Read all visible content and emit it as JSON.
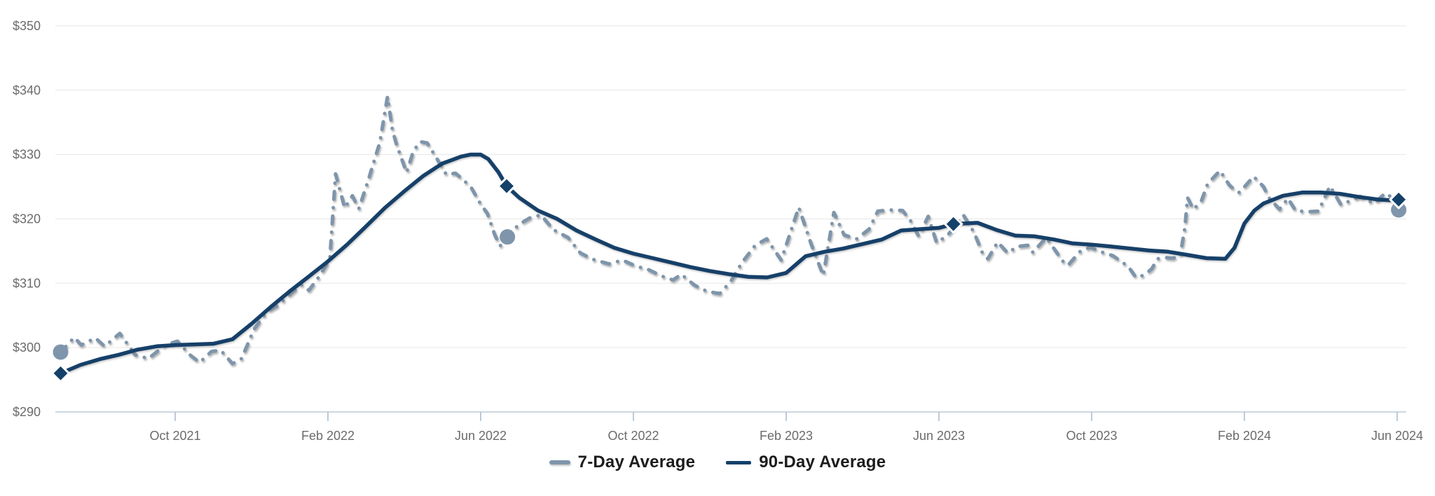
{
  "chart_data": {
    "type": "line",
    "title": "",
    "xlabel": "",
    "ylabel": "",
    "x_axis": {
      "unit": "months since 2021-07-01",
      "tick_t": [
        3,
        7,
        11,
        15,
        19,
        23,
        27,
        31,
        35
      ],
      "tick_labels": [
        "Oct 2021",
        "Feb 2022",
        "Jun 2022",
        "Oct 2022",
        "Feb 2023",
        "Jun 2023",
        "Oct 2023",
        "Feb 2024",
        "Jun 2024"
      ]
    },
    "y_axis": {
      "range": [
        290,
        350
      ],
      "tick_values": [
        290,
        300,
        310,
        320,
        330,
        340,
        350
      ],
      "tick_labels": [
        "$290",
        "$300",
        "$310",
        "$320",
        "$330",
        "$340",
        "$350"
      ]
    },
    "grid": "horizontal",
    "legend_position": "bottom-center",
    "series": [
      {
        "name": "7-Day Average",
        "style": "dashed",
        "color": "#7E95AB",
        "points": [
          [
            0,
            299.3
          ],
          [
            0.36,
            301.6
          ],
          [
            0.54,
            300.4
          ],
          [
            0.91,
            301.5
          ],
          [
            1.15,
            300.2
          ],
          [
            1.55,
            302.2
          ],
          [
            1.95,
            298.9
          ],
          [
            2.3,
            298.3
          ],
          [
            2.74,
            300.4
          ],
          [
            3.06,
            301
          ],
          [
            3.4,
            298.8
          ],
          [
            3.64,
            297.7
          ],
          [
            3.95,
            299.4
          ],
          [
            4.19,
            299.6
          ],
          [
            4.5,
            297.5
          ],
          [
            4.74,
            298.3
          ],
          [
            5.06,
            302.8
          ],
          [
            5.4,
            305.6
          ],
          [
            5.7,
            306.6
          ],
          [
            6.01,
            308.3
          ],
          [
            6.3,
            309.8
          ],
          [
            6.5,
            308.9
          ],
          [
            6.8,
            311.3
          ],
          [
            7.05,
            313.8
          ],
          [
            7.2,
            327
          ],
          [
            7.44,
            321.7
          ],
          [
            7.64,
            323.6
          ],
          [
            7.81,
            321.6
          ],
          [
            8.05,
            325.9
          ],
          [
            8.36,
            331.9
          ],
          [
            8.56,
            339
          ],
          [
            8.69,
            333.8
          ],
          [
            8.8,
            331.5
          ],
          [
            9.06,
            327.2
          ],
          [
            9.24,
            330.6
          ],
          [
            9.42,
            332
          ],
          [
            9.6,
            331.8
          ],
          [
            9.84,
            329.5
          ],
          [
            10.1,
            326.9
          ],
          [
            10.34,
            327.1
          ],
          [
            10.56,
            326
          ],
          [
            10.76,
            324.8
          ],
          [
            10.98,
            322.5
          ],
          [
            11.18,
            320.8
          ],
          [
            11.37,
            317.5
          ],
          [
            11.51,
            315.8
          ],
          [
            11.7,
            317.2
          ],
          [
            11.99,
            319.1
          ],
          [
            12.3,
            320.2
          ],
          [
            12.58,
            320.6
          ],
          [
            12.91,
            318.3
          ],
          [
            13.29,
            317.1
          ],
          [
            13.61,
            314.7
          ],
          [
            13.95,
            313.7
          ],
          [
            14.36,
            313
          ],
          [
            14.71,
            313.6
          ],
          [
            15.05,
            312.7
          ],
          [
            15.4,
            312.1
          ],
          [
            15.75,
            311.1
          ],
          [
            16.04,
            310.5
          ],
          [
            16.25,
            311.4
          ],
          [
            16.6,
            309.7
          ],
          [
            16.94,
            308.7
          ],
          [
            17.26,
            308.4
          ],
          [
            17.55,
            310.3
          ],
          [
            17.84,
            313.2
          ],
          [
            18.19,
            315.9
          ],
          [
            18.49,
            316.9
          ],
          [
            18.87,
            313.6
          ],
          [
            19.33,
            321.8
          ],
          [
            19.66,
            316
          ],
          [
            19.97,
            311.2
          ],
          [
            20.25,
            321
          ],
          [
            20.52,
            317.5
          ],
          [
            20.85,
            316.9
          ],
          [
            21.17,
            318.4
          ],
          [
            21.4,
            321.2
          ],
          [
            21.72,
            321.4
          ],
          [
            22.05,
            321.3
          ],
          [
            22.27,
            319.6
          ],
          [
            22.47,
            317.3
          ],
          [
            22.72,
            320.4
          ],
          [
            22.94,
            316.3
          ],
          [
            23.22,
            317.4
          ],
          [
            23.44,
            319
          ],
          [
            23.64,
            320.6
          ],
          [
            23.92,
            317.9
          ],
          [
            24.14,
            314.7
          ],
          [
            24.28,
            313.8
          ],
          [
            24.54,
            316.4
          ],
          [
            24.8,
            314.7
          ],
          [
            25.05,
            315.7
          ],
          [
            25.33,
            315.9
          ],
          [
            25.46,
            314.8
          ],
          [
            25.81,
            317.1
          ],
          [
            26.25,
            313.4
          ],
          [
            26.38,
            312.8
          ],
          [
            26.69,
            314.9
          ],
          [
            26.96,
            315.6
          ],
          [
            27.37,
            314.6
          ],
          [
            27.55,
            314.3
          ],
          [
            27.84,
            313.1
          ],
          [
            27.97,
            312.5
          ],
          [
            28.16,
            310.9
          ],
          [
            28.39,
            311.3
          ],
          [
            28.58,
            312.3
          ],
          [
            28.72,
            313.8
          ],
          [
            28.93,
            314
          ],
          [
            29.11,
            313.9
          ],
          [
            29.31,
            314.1
          ],
          [
            29.44,
            318.6
          ],
          [
            29.51,
            323.3
          ],
          [
            29.66,
            321.5
          ],
          [
            29.86,
            322.6
          ],
          [
            30.04,
            325.5
          ],
          [
            30.36,
            327.5
          ],
          [
            30.6,
            325.3
          ],
          [
            30.78,
            324.3
          ],
          [
            30.87,
            324.1
          ],
          [
            31.24,
            326.6
          ],
          [
            31.5,
            325
          ],
          [
            31.64,
            323.3
          ],
          [
            31.92,
            321.5
          ],
          [
            32.14,
            323.2
          ],
          [
            32.34,
            321.3
          ],
          [
            32.63,
            321.1
          ],
          [
            32.94,
            321.2
          ],
          [
            33.24,
            325.1
          ],
          [
            33.53,
            322.2
          ],
          [
            33.72,
            322.7
          ],
          [
            34.03,
            323.5
          ],
          [
            34.39,
            322.4
          ],
          [
            34.69,
            324
          ],
          [
            34.82,
            323.5
          ],
          [
            35.04,
            321.4
          ]
        ],
        "markers": [
          {
            "t": 0,
            "v": 299.3,
            "shape": "circle"
          },
          {
            "t": 11.7,
            "v": 317.2,
            "shape": "circle"
          },
          {
            "t": 35.04,
            "v": 321.4,
            "shape": "circle"
          }
        ]
      },
      {
        "name": "90-Day Average",
        "style": "solid",
        "color": "#144169",
        "points": [
          [
            0,
            296
          ],
          [
            0.52,
            297.3
          ],
          [
            1.02,
            298.2
          ],
          [
            1.53,
            298.9
          ],
          [
            2.03,
            299.7
          ],
          [
            2.52,
            300.2
          ],
          [
            3.02,
            300.4
          ],
          [
            3.51,
            300.5
          ],
          [
            4.01,
            300.6
          ],
          [
            4.5,
            301.3
          ],
          [
            5,
            303.7
          ],
          [
            5.5,
            306.3
          ],
          [
            5.99,
            308.7
          ],
          [
            6.49,
            311
          ],
          [
            7,
            313.4
          ],
          [
            7.5,
            316
          ],
          [
            7.99,
            318.8
          ],
          [
            8.49,
            321.7
          ],
          [
            8.98,
            324.2
          ],
          [
            9.5,
            326.7
          ],
          [
            9.99,
            328.6
          ],
          [
            10.49,
            329.7
          ],
          [
            10.74,
            330
          ],
          [
            11,
            330
          ],
          [
            11.2,
            329.3
          ],
          [
            11.46,
            327.3
          ],
          [
            11.68,
            325.1
          ],
          [
            12.01,
            323.3
          ],
          [
            12.5,
            321.3
          ],
          [
            13,
            320
          ],
          [
            13.51,
            318.2
          ],
          [
            14.01,
            316.8
          ],
          [
            14.5,
            315.5
          ],
          [
            15,
            314.6
          ],
          [
            15.51,
            313.9
          ],
          [
            16.01,
            313.2
          ],
          [
            16.5,
            312.5
          ],
          [
            17,
            311.9
          ],
          [
            17.51,
            311.4
          ],
          [
            18.01,
            311
          ],
          [
            18.5,
            310.9
          ],
          [
            19,
            311.6
          ],
          [
            19.51,
            314.2
          ],
          [
            20.01,
            314.9
          ],
          [
            20.5,
            315.4
          ],
          [
            21,
            316.1
          ],
          [
            21.51,
            316.8
          ],
          [
            22.01,
            318.2
          ],
          [
            22.5,
            318.4
          ],
          [
            23,
            318.6
          ],
          [
            23.38,
            319.2
          ],
          [
            24.01,
            319.4
          ],
          [
            24.5,
            318.3
          ],
          [
            25,
            317.4
          ],
          [
            25.49,
            317.3
          ],
          [
            26.01,
            316.8
          ],
          [
            26.5,
            316.2
          ],
          [
            27,
            316
          ],
          [
            27.51,
            315.7
          ],
          [
            28.01,
            315.4
          ],
          [
            28.5,
            315.1
          ],
          [
            29,
            314.9
          ],
          [
            29.51,
            314.4
          ],
          [
            30.01,
            313.9
          ],
          [
            30.5,
            313.8
          ],
          [
            30.74,
            315.5
          ],
          [
            31,
            319.3
          ],
          [
            31.26,
            321.3
          ],
          [
            31.5,
            322.4
          ],
          [
            32.01,
            323.6
          ],
          [
            32.51,
            324.1
          ],
          [
            33,
            324.1
          ],
          [
            33.5,
            323.9
          ],
          [
            34.01,
            323.4
          ],
          [
            34.51,
            323
          ],
          [
            34.8,
            322.9
          ],
          [
            35.04,
            323
          ]
        ],
        "markers": [
          {
            "t": 0,
            "v": 296,
            "shape": "diamond"
          },
          {
            "t": 11.68,
            "v": 325.1,
            "shape": "diamond"
          },
          {
            "t": 23.38,
            "v": 319.2,
            "shape": "diamond"
          },
          {
            "t": 35.04,
            "v": 323,
            "shape": "diamond"
          }
        ]
      }
    ]
  },
  "legend": {
    "items": [
      {
        "label": "7-Day Average"
      },
      {
        "label": "90-Day Average"
      }
    ]
  },
  "colors": {
    "seven_day": "#7E95AB",
    "ninety_day": "#144169",
    "gridline": "#E7E7E7",
    "axis_line": "#BCCAD9",
    "axis_label": "#6B6B6B",
    "legend_text": "#1C1C1C",
    "background": "#FFFFFF"
  }
}
